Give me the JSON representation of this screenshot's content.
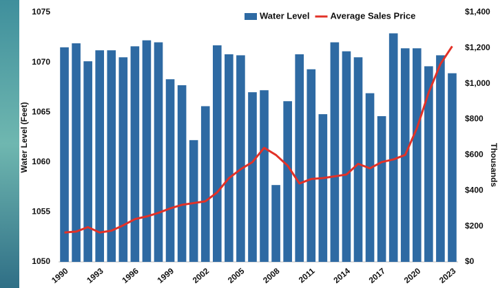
{
  "chart_data": {
    "type": "bar",
    "categories": [
      "1990",
      null,
      null,
      "1993",
      null,
      null,
      "1996",
      null,
      null,
      "1999",
      null,
      null,
      "2002",
      null,
      null,
      "2005",
      null,
      null,
      "2008",
      null,
      null,
      "2011",
      null,
      null,
      "2014",
      null,
      null,
      "2017",
      null,
      null,
      "2020",
      null,
      null,
      "2023"
    ],
    "ylabel": "Water Level (Feet)",
    "y2label": "Thousands",
    "ylim": [
      1050,
      1075
    ],
    "yticks": [
      1050,
      1055,
      1060,
      1065,
      1070,
      1075
    ],
    "y2lim": [
      0,
      1400
    ],
    "y2ticks": [
      {
        "value": 0,
        "label": "$0"
      },
      {
        "value": 200,
        "label": "$200"
      },
      {
        "value": 400,
        "label": "$400"
      },
      {
        "value": 600,
        "label": "$600"
      },
      {
        "value": 800,
        "label": "$800"
      },
      {
        "value": 1000,
        "label": "$1,000"
      },
      {
        "value": 1200,
        "label": "$1,200"
      },
      {
        "value": 1400,
        "label": "$1,400"
      }
    ],
    "legend": "top-right",
    "series": [
      {
        "name": "Water Level",
        "type": "bar",
        "color": "#2e6aa3",
        "values": [
          1071.5,
          1071.9,
          1070.1,
          1071.2,
          1071.2,
          1070.5,
          1071.6,
          1072.2,
          1072.0,
          1068.3,
          1067.7,
          1062.2,
          1065.6,
          1071.7,
          1070.8,
          1070.7,
          1067.0,
          1067.2,
          1057.7,
          1066.1,
          1070.8,
          1069.3,
          1064.8,
          1072.0,
          1071.1,
          1070.5,
          1066.9,
          1064.6,
          1072.9,
          1071.4,
          1071.4,
          1069.6,
          1070.7,
          1068.9
        ]
      },
      {
        "name": "Average Sales Price",
        "type": "line",
        "axis": "y2",
        "color": "#e23127",
        "values": [
          165,
          170,
          195,
          165,
          175,
          205,
          240,
          255,
          275,
          300,
          320,
          330,
          340,
          390,
          470,
          520,
          560,
          640,
          600,
          540,
          440,
          465,
          470,
          480,
          490,
          550,
          525,
          560,
          575,
          600,
          750,
          950,
          1110,
          1210
        ]
      }
    ]
  }
}
